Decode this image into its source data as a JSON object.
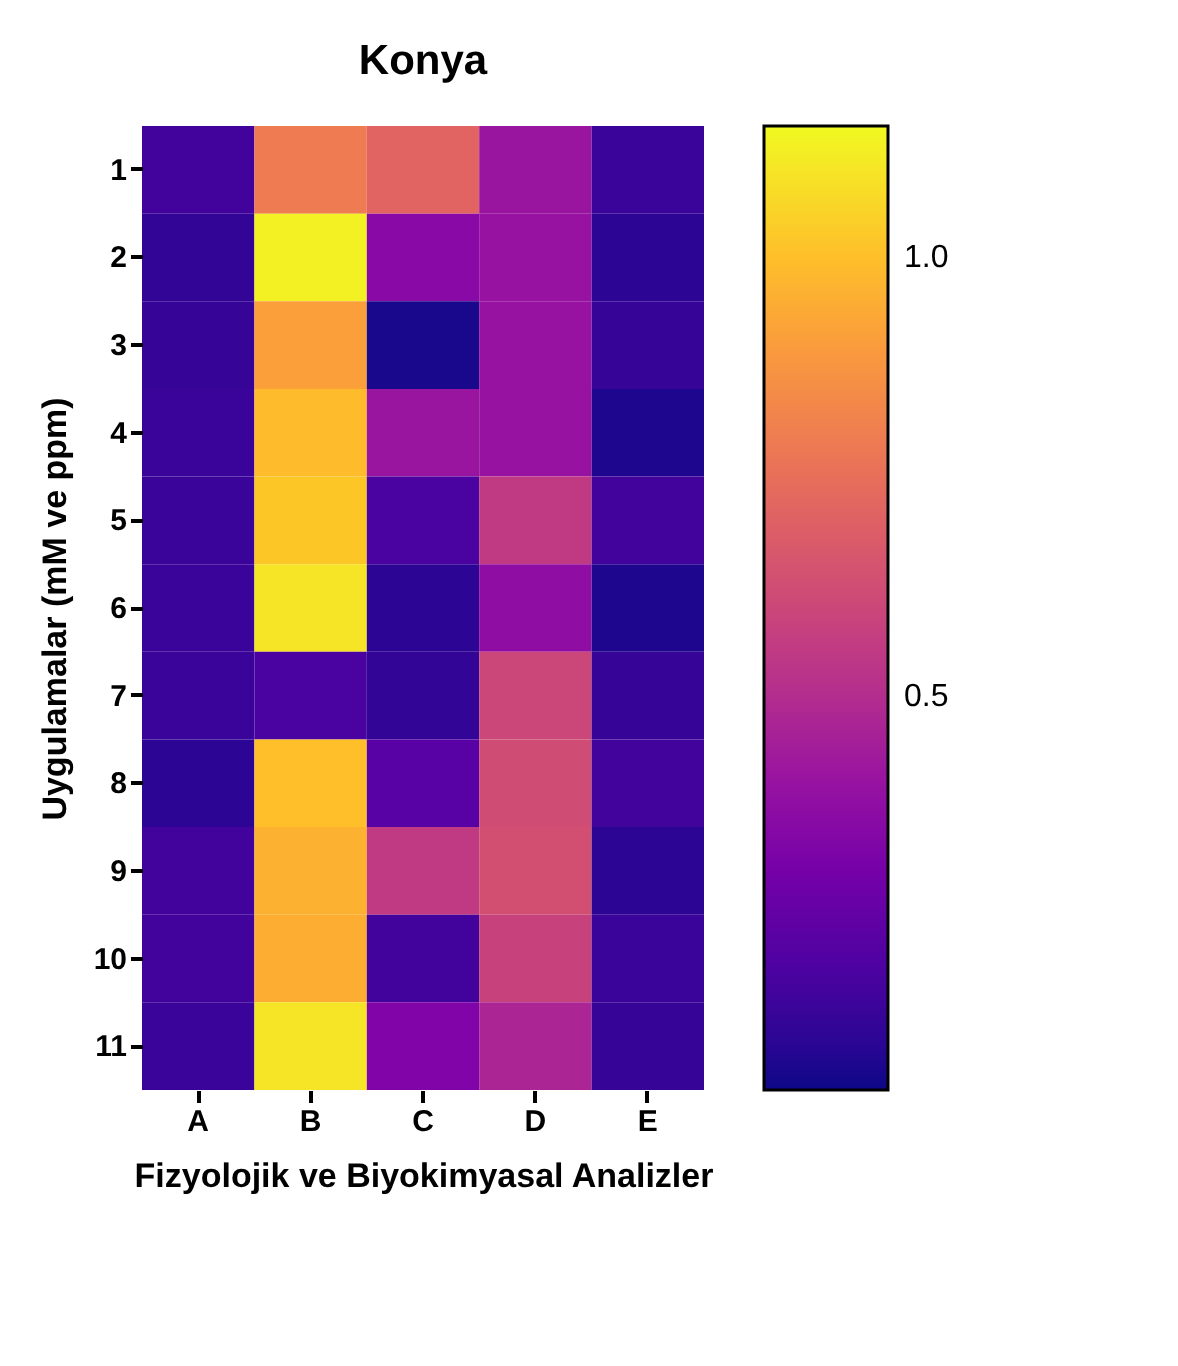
{
  "chart_data": {
    "type": "heatmap",
    "title": "Konya",
    "xlabel": "Fizyolojik ve Biyokimyasal Analizler",
    "ylabel": "Uygulamalar (mM ve ppm)",
    "categories": [
      "A",
      "B",
      "C",
      "D",
      "E"
    ],
    "y_categories": [
      "1",
      "2",
      "3",
      "4",
      "5",
      "6",
      "7",
      "8",
      "9",
      "10",
      "11"
    ],
    "cells": [
      [
        0.16,
        0.79,
        0.71,
        0.41,
        0.14
      ],
      [
        0.12,
        1.13,
        0.36,
        0.4,
        0.11
      ],
      [
        0.13,
        0.91,
        0.07,
        0.4,
        0.13
      ],
      [
        0.14,
        0.99,
        0.41,
        0.4,
        0.08
      ],
      [
        0.14,
        1.02,
        0.18,
        0.55,
        0.16
      ],
      [
        0.14,
        1.1,
        0.11,
        0.38,
        0.08
      ],
      [
        0.14,
        0.18,
        0.12,
        0.6,
        0.13
      ],
      [
        0.11,
        1.0,
        0.22,
        0.62,
        0.16
      ],
      [
        0.16,
        0.96,
        0.55,
        0.63,
        0.11
      ],
      [
        0.16,
        0.95,
        0.16,
        0.58,
        0.14
      ],
      [
        0.14,
        1.1,
        0.33,
        0.47,
        0.13
      ]
    ],
    "clim": [
      0.05,
      1.15
    ],
    "cticks": [
      {
        "value": 0.5,
        "label": "0.5"
      },
      {
        "value": 1,
        "label": "1.0"
      }
    ]
  }
}
